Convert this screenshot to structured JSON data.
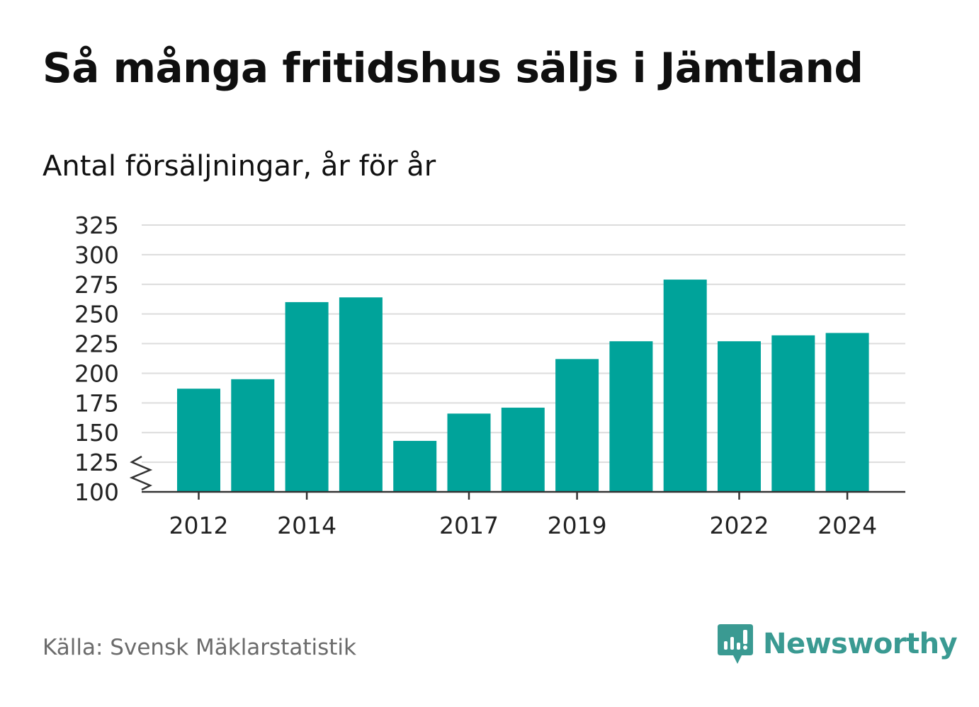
{
  "title": "Så många fritidshus säljs i Jämtland",
  "subtitle": "Antal försäljningar, år för år",
  "source": "Källa: Svensk Mäklarstatistik",
  "brand": {
    "name": "Newsworthy",
    "icon": "newsworthy-logo-icon",
    "color": "#3a9a92"
  },
  "chart_data": {
    "type": "bar",
    "categories": [
      "2012",
      "2013",
      "2014",
      "2015",
      "2016",
      "2017",
      "2018",
      "2019",
      "2020",
      "2021",
      "2022",
      "2023",
      "2024"
    ],
    "values": [
      187,
      195,
      260,
      264,
      143,
      166,
      171,
      212,
      227,
      279,
      227,
      232,
      234
    ],
    "x_tick_labels": [
      "2012",
      "2014",
      "2017",
      "2019",
      "2022",
      "2024"
    ],
    "y_ticks": [
      100,
      125,
      150,
      175,
      200,
      225,
      250,
      275,
      300,
      325
    ],
    "ylim": [
      100,
      325
    ],
    "axis_break": true,
    "grid": true,
    "bar_color": "#00a39a"
  }
}
